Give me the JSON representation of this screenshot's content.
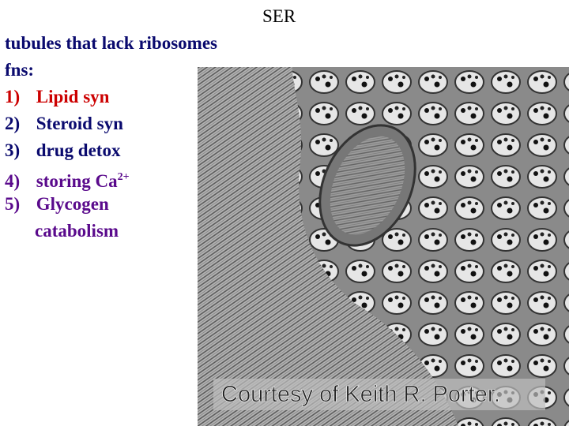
{
  "slide": {
    "title": "SER",
    "subtitle": "tubules that lack ribosomes",
    "list_heading": "fns:",
    "items": [
      {
        "number": "1)",
        "text": "Lipid syn"
      },
      {
        "number": "2)",
        "text": "Steroid syn"
      },
      {
        "number": "3)",
        "text": "drug detox"
      },
      {
        "number": "4)",
        "text": "storing Ca",
        "superscript": "2+"
      },
      {
        "number": "5)",
        "text": "Glycogen",
        "continuation": "catabolism"
      }
    ],
    "image_caption": "Courtesy of Keith R. Porter."
  }
}
